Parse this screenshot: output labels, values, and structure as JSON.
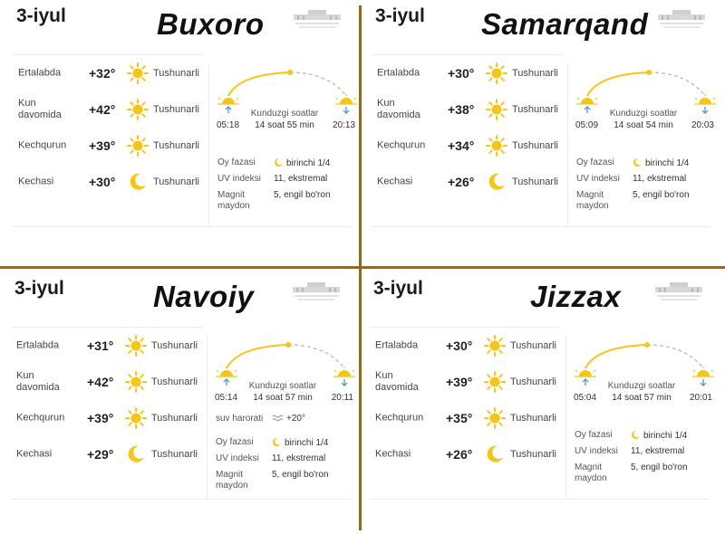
{
  "panels": [
    {
      "date": "3-iyul",
      "city": "Buxoro",
      "rows": [
        {
          "period": "Ertalabda",
          "temp": "+32°",
          "icon": "sun-icon",
          "cond": "Tushunarli"
        },
        {
          "period": "Kun davomida",
          "temp": "+42°",
          "icon": "sun-icon",
          "cond": "Tushunarli"
        },
        {
          "period": "Kechqurun",
          "temp": "+39°",
          "icon": "sun-icon",
          "cond": "Tushunarli"
        },
        {
          "period": "Kechasi",
          "temp": "+30°",
          "icon": "moon-icon",
          "cond": "Tushunarli"
        }
      ],
      "sun": {
        "label": "Kunduzgi soatlar",
        "length": "14 soat 55 min",
        "rise": "05:18",
        "set": "20:13"
      },
      "details": [
        {
          "label": "Oy fazasi",
          "value": "birinchi 1/4",
          "icon": "moon-phase-icon"
        },
        {
          "label": "UV indeksi",
          "value": "11, ekstremal"
        },
        {
          "label": "Magnit maydon",
          "value": "5, engil bo'ron"
        }
      ]
    },
    {
      "date": "3-iyul",
      "city": "Samarqand",
      "rows": [
        {
          "period": "Ertalabda",
          "temp": "+30°",
          "icon": "sun-icon",
          "cond": "Tushunarli"
        },
        {
          "period": "Kun davomida",
          "temp": "+38°",
          "icon": "sun-icon",
          "cond": "Tushunarli"
        },
        {
          "period": "Kechqurun",
          "temp": "+34°",
          "icon": "sun-icon",
          "cond": "Tushunarli"
        },
        {
          "period": "Kechasi",
          "temp": "+26°",
          "icon": "moon-icon",
          "cond": "Tushunarli"
        }
      ],
      "sun": {
        "label": "Kunduzgi soatlar",
        "length": "14 soat 54 min",
        "rise": "05:09",
        "set": "20:03"
      },
      "details": [
        {
          "label": "Oy fazasi",
          "value": "birinchi 1/4",
          "icon": "moon-phase-icon"
        },
        {
          "label": "UV indeksi",
          "value": "11, ekstremal"
        },
        {
          "label": "Magnit maydon",
          "value": "5, engil bo'ron"
        }
      ]
    },
    {
      "date": "3-iyul",
      "city": "Navoiy",
      "rows": [
        {
          "period": "Ertalabda",
          "temp": "+31°",
          "icon": "sun-icon",
          "cond": "Tushunarli"
        },
        {
          "period": "Kun davomida",
          "temp": "+42°",
          "icon": "sun-icon",
          "cond": "Tushunarli"
        },
        {
          "period": "Kechqurun",
          "temp": "+39°",
          "icon": "sun-icon",
          "cond": "Tushunarli"
        },
        {
          "period": "Kechasi",
          "temp": "+29°",
          "icon": "moon-icon",
          "cond": "Tushunarli"
        }
      ],
      "sun": {
        "label": "Kunduzgi soatlar",
        "length": "14 soat 57 min",
        "rise": "05:14",
        "set": "20:11"
      },
      "details": [
        {
          "label": "suv harorati",
          "value": "+20°",
          "icon": "water-wave-icon"
        },
        {
          "label": "Oy fazasi",
          "value": "birinchi 1/4",
          "icon": "moon-phase-icon"
        },
        {
          "label": "UV indeksi",
          "value": "11, ekstremal"
        },
        {
          "label": "Magnit maydon",
          "value": "5, engil bo'ron"
        }
      ]
    },
    {
      "date": "3-iyul",
      "city": "Jizzax",
      "rows": [
        {
          "period": "Ertalabda",
          "temp": "+30°",
          "icon": "sun-icon",
          "cond": "Tushunarli"
        },
        {
          "period": "Kun davomida",
          "temp": "+39°",
          "icon": "sun-icon",
          "cond": "Tushunarli"
        },
        {
          "period": "Kechqurun",
          "temp": "+35°",
          "icon": "sun-icon",
          "cond": "Tushunarli"
        },
        {
          "period": "Kechasi",
          "temp": "+26°",
          "icon": "moon-icon",
          "cond": "Tushunarli"
        }
      ],
      "sun": {
        "label": "Kunduzgi soatlar",
        "length": "14 soat 57 min",
        "rise": "05:04",
        "set": "20:01"
      },
      "details": [
        {
          "label": "Oy fazasi",
          "value": "birinchi 1/4",
          "icon": "moon-phase-icon"
        },
        {
          "label": "UV indeksi",
          "value": "11, ekstremal"
        },
        {
          "label": "Magnit maydon",
          "value": "5, engil bo'ron"
        }
      ]
    }
  ],
  "colors": {
    "accent": "#f5c518",
    "divider": "#8b6a2a",
    "sunrise_arrow": "#3d8fd9"
  }
}
